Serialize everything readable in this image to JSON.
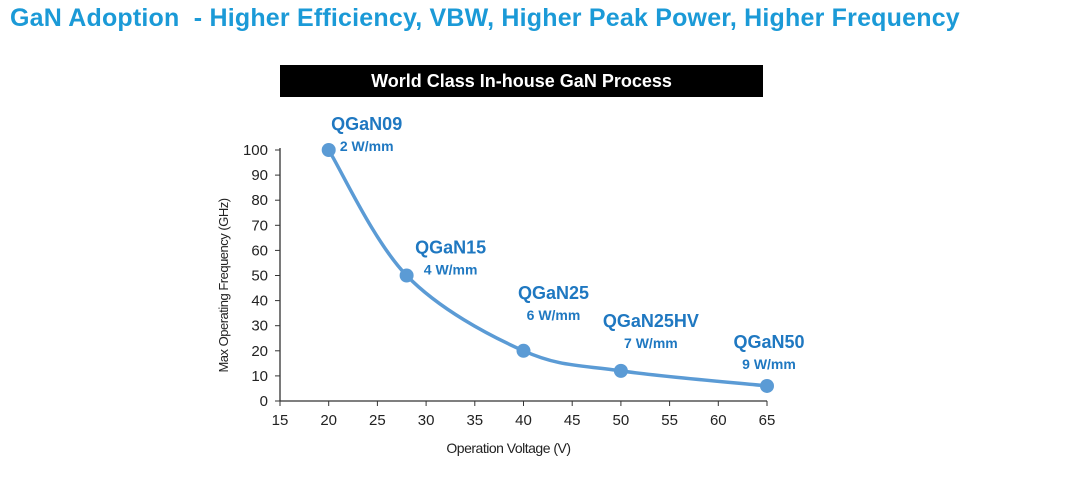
{
  "page_title": "GaN Adoption  - Higher Efficiency, VBW, Higher Peak Power, Higher Frequency",
  "banner": "World Class In-house GaN Process",
  "colors": {
    "title": "#1b9ad7",
    "series": "#5b9bd5",
    "label": "#1f78c1",
    "banner_bg": "#000000"
  },
  "chart_data": {
    "type": "line",
    "xlabel": "Operation Voltage (V)",
    "ylabel": "Max Operating Frequency (GHz)",
    "xlim": [
      15,
      65
    ],
    "ylim": [
      0,
      100
    ],
    "xticks": [
      "15",
      "20",
      "25",
      "30",
      "35",
      "40",
      "45",
      "50",
      "55",
      "60",
      "65"
    ],
    "yticks": [
      "0",
      "10",
      "20",
      "30",
      "40",
      "50",
      "60",
      "70",
      "80",
      "90",
      "100"
    ],
    "grid": false,
    "smooth": true,
    "points": [
      {
        "x": 20,
        "y": 100,
        "name": "QGaN09",
        "power": "2 W/mm"
      },
      {
        "x": 28,
        "y": 50,
        "name": "QGaN15",
        "power": "4 W/mm"
      },
      {
        "x": 40,
        "y": 20,
        "name": "QGaN25",
        "power": "6 W/mm"
      },
      {
        "x": 50,
        "y": 12,
        "name": "QGaN25HV",
        "power": "7 W/mm"
      },
      {
        "x": 65,
        "y": 6,
        "name": "QGaN50",
        "power": "9 W/mm"
      }
    ]
  }
}
